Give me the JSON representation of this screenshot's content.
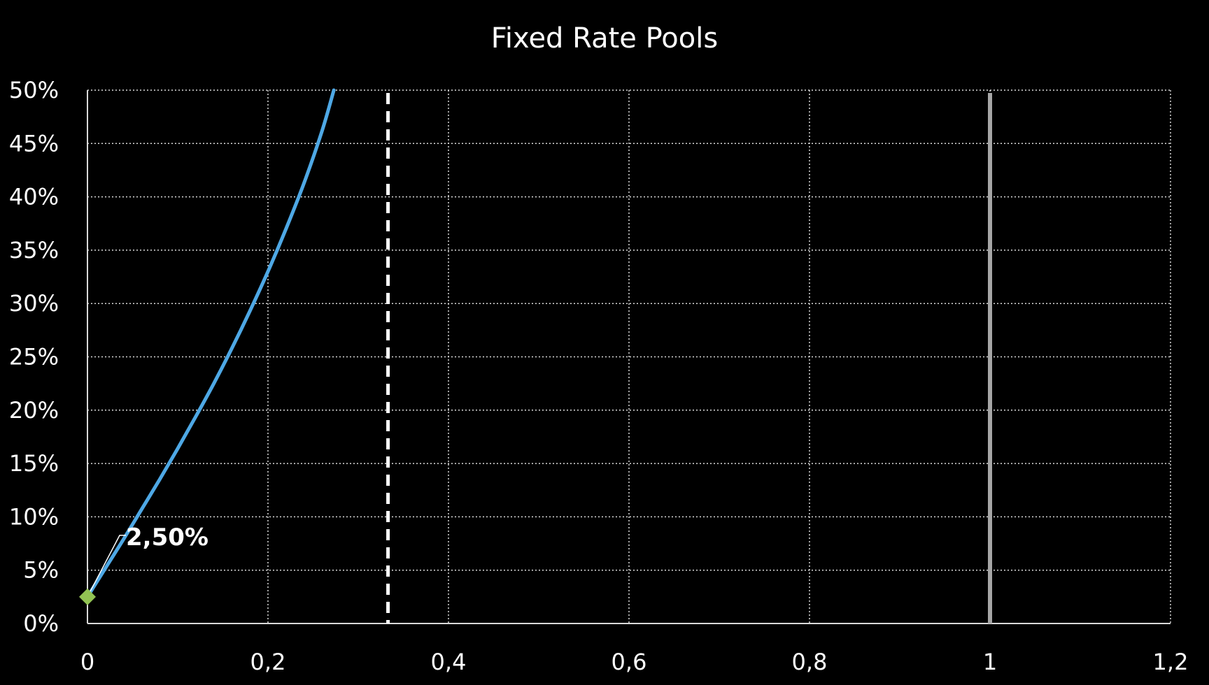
{
  "chart_data": {
    "type": "line",
    "title": "Fixed Rate Pools",
    "xlabel": "",
    "ylabel": "",
    "xlim": [
      0,
      1.2
    ],
    "ylim": [
      0,
      0.5
    ],
    "x_ticks": [
      0,
      0.2,
      0.4,
      0.6,
      0.8,
      1,
      1.2
    ],
    "x_tick_labels": [
      "0",
      "0,2",
      "0,4",
      "0,6",
      "0,8",
      "1",
      "1,2"
    ],
    "y_ticks": [
      0,
      0.05,
      0.1,
      0.15,
      0.2,
      0.25,
      0.3,
      0.35,
      0.4,
      0.45,
      0.5
    ],
    "y_tick_labels": [
      "0%",
      "5%",
      "10%",
      "15%",
      "20%",
      "25%",
      "30%",
      "35%",
      "40%",
      "45%",
      "50%"
    ],
    "grid": true,
    "series": [
      {
        "x": [
          0,
          0.02,
          0.04,
          0.06,
          0.08,
          0.1,
          0.12,
          0.14,
          0.16,
          0.18,
          0.2,
          0.22,
          0.24,
          0.26,
          0.273
        ],
        "y": [
          0.025,
          0.052,
          0.079,
          0.107,
          0.135,
          0.164,
          0.194,
          0.225,
          0.258,
          0.293,
          0.33,
          0.37,
          0.413,
          0.462,
          0.5
        ],
        "color": "#4EA8E5"
      }
    ],
    "marker": {
      "x": 0,
      "y": 0.025,
      "label": "2,50%",
      "color": "#92C353"
    },
    "vertical_lines": [
      {
        "x": 0.333,
        "style": "dashed",
        "color": "#FFFFFF"
      },
      {
        "x": 1.0,
        "style": "solid",
        "color": "#A6A6A6"
      }
    ],
    "colors": {
      "background": "#000000",
      "grid": "#D9D9D9",
      "text": "#FFFFFF"
    }
  }
}
